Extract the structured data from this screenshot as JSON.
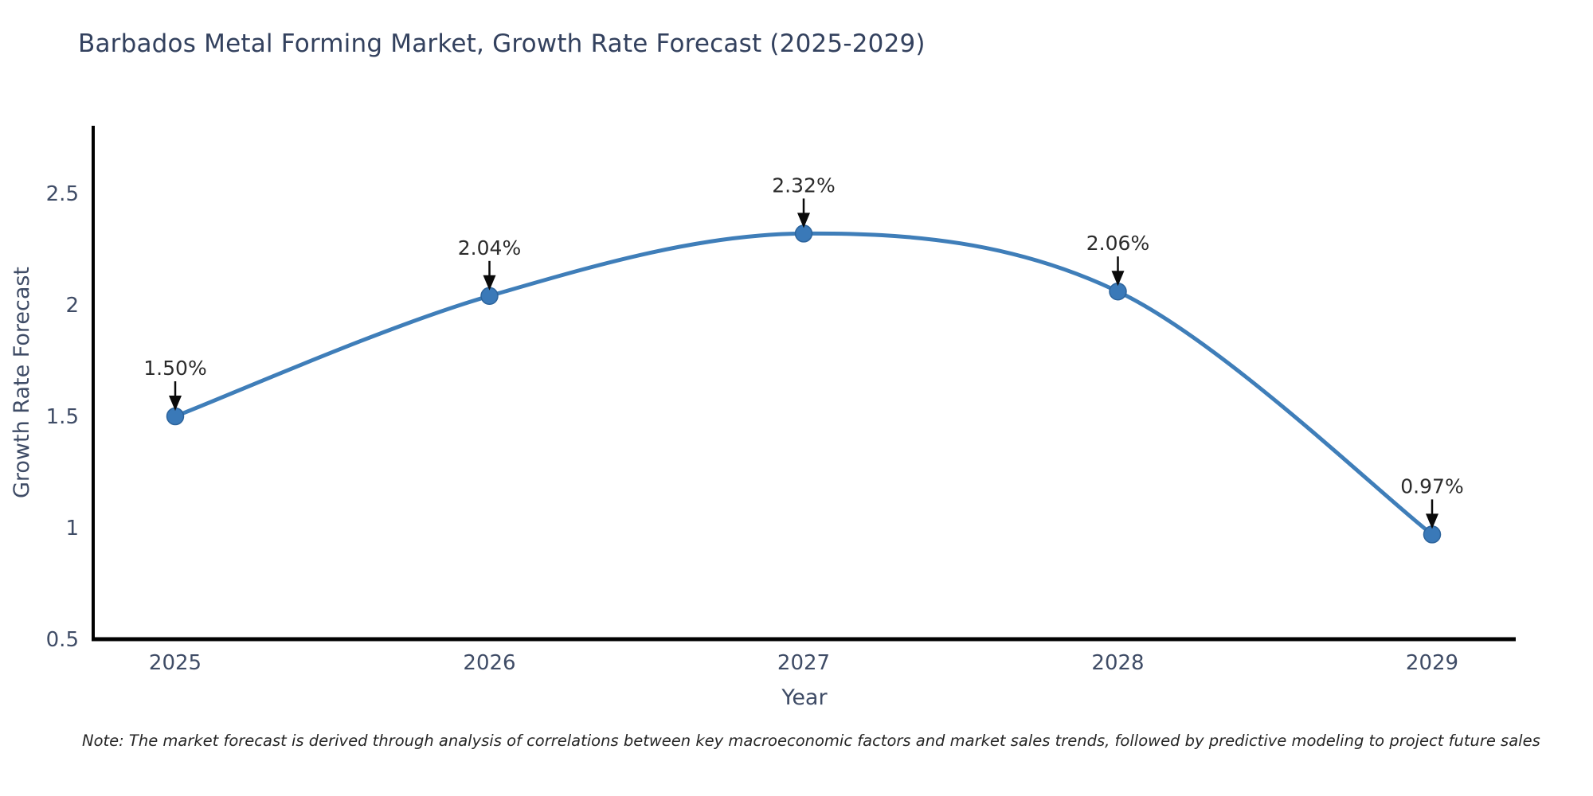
{
  "title": "Barbados Metal Forming Market, Growth Rate Forecast (2025-2029)",
  "note": "Note: The market forecast is derived through analysis of correlations between key macroeconomic factors and market sales trends, followed by predictive modeling to project future sales",
  "chart_data": {
    "type": "line",
    "title": "Barbados Metal Forming Market, Growth Rate Forecast (2025-2029)",
    "xlabel": "Year",
    "ylabel": "Growth Rate Forecast",
    "categories": [
      "2025",
      "2026",
      "2027",
      "2028",
      "2029"
    ],
    "series": [
      {
        "name": "Growth Rate Forecast",
        "values": [
          1.5,
          2.04,
          2.32,
          2.06,
          0.97
        ]
      }
    ],
    "point_labels": [
      "1.50%",
      "2.04%",
      "2.32%",
      "2.06%",
      "0.97%"
    ],
    "yticks": [
      0.5,
      1.0,
      1.5,
      2.0,
      2.5
    ],
    "ytick_labels": [
      "0.5",
      "1",
      "1.5",
      "2",
      "2.5"
    ],
    "ylim": [
      0.5,
      2.8
    ],
    "grid": false,
    "legend": "none",
    "smooth": true,
    "colors": {
      "line": "#3f7eb9",
      "marker": "#3a79b8",
      "marker_edge": "#2d649c",
      "annotation_text": "#2b2b2b",
      "arrow": "#0a0a0a",
      "axis_spine": "#000000",
      "tick_label": "#3f4c66",
      "axis_label": "#3f4c66",
      "title": "#33415e"
    }
  }
}
